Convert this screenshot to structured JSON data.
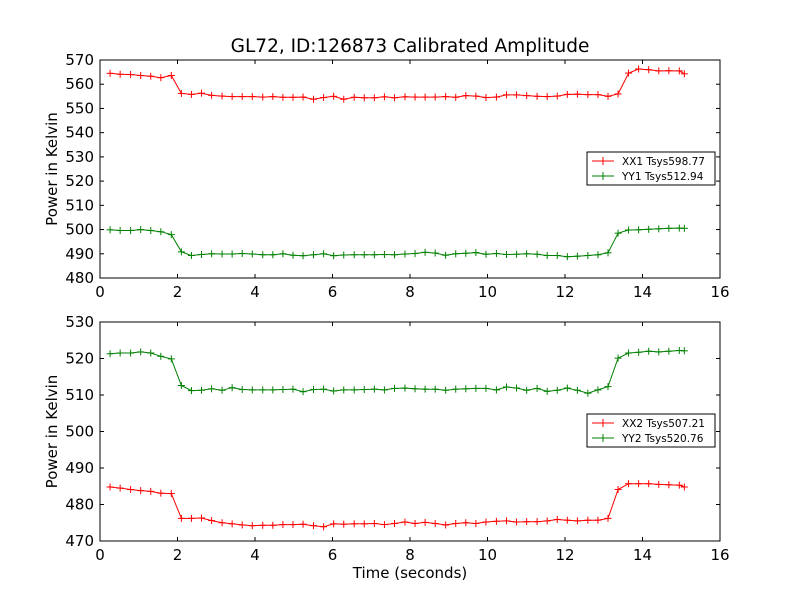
{
  "figure": {
    "title": "GL72, ID:126873 Calibrated Amplitude"
  },
  "chart_data": [
    {
      "type": "line",
      "title": "GL72, ID:126873 Calibrated Amplitude",
      "xlabel": "",
      "ylabel": "Power in Kelvin",
      "xlim": [
        0,
        16
      ],
      "ylim": [
        480,
        570
      ],
      "xticks": [
        0,
        2,
        4,
        6,
        8,
        10,
        12,
        14,
        16
      ],
      "yticks": [
        480,
        490,
        500,
        510,
        520,
        530,
        540,
        550,
        560,
        570
      ],
      "grid": false,
      "legend": "center-right",
      "marker": "+",
      "series": [
        {
          "name": "XX1 Tsys598.77",
          "color": "#ff0000",
          "x": [
            0.26,
            0.52,
            0.79,
            1.05,
            1.31,
            1.57,
            1.84,
            2.1,
            2.36,
            2.62,
            2.88,
            3.15,
            3.41,
            3.67,
            3.93,
            4.2,
            4.46,
            4.72,
            4.98,
            5.24,
            5.51,
            5.77,
            6.03,
            6.29,
            6.56,
            6.82,
            7.08,
            7.34,
            7.6,
            7.87,
            8.13,
            8.39,
            8.65,
            8.92,
            9.18,
            9.44,
            9.7,
            9.96,
            10.23,
            10.49,
            10.75,
            11.01,
            11.28,
            11.54,
            11.8,
            12.06,
            12.32,
            12.59,
            12.85,
            13.11,
            13.37,
            13.64,
            13.9,
            14.16,
            14.42,
            14.68,
            14.95,
            15.08
          ],
          "y": [
            564.5,
            564.1,
            564.0,
            563.6,
            563.3,
            562.7,
            563.6,
            556.2,
            555.8,
            556.3,
            555.4,
            555.1,
            554.9,
            554.9,
            554.9,
            554.7,
            554.9,
            554.6,
            554.6,
            554.7,
            553.8,
            554.5,
            555.0,
            553.8,
            554.6,
            554.4,
            554.4,
            554.8,
            554.4,
            554.8,
            554.7,
            554.7,
            554.7,
            554.9,
            554.6,
            555.3,
            555.1,
            554.5,
            554.7,
            555.6,
            555.6,
            555.3,
            555.0,
            554.9,
            555.1,
            555.8,
            555.9,
            555.7,
            555.7,
            555.0,
            556.0,
            564.6,
            566.3,
            566.0,
            565.5,
            565.6,
            565.5,
            564.3
          ]
        },
        {
          "name": "YY1 Tsys512.94",
          "color": "#008000",
          "x": [
            0.26,
            0.52,
            0.79,
            1.05,
            1.31,
            1.57,
            1.84,
            2.1,
            2.36,
            2.62,
            2.88,
            3.15,
            3.41,
            3.67,
            3.93,
            4.2,
            4.46,
            4.72,
            4.98,
            5.24,
            5.51,
            5.77,
            6.03,
            6.29,
            6.56,
            6.82,
            7.08,
            7.34,
            7.6,
            7.87,
            8.13,
            8.39,
            8.65,
            8.92,
            9.18,
            9.44,
            9.7,
            9.96,
            10.23,
            10.49,
            10.75,
            11.01,
            11.28,
            11.54,
            11.8,
            12.06,
            12.32,
            12.59,
            12.85,
            13.11,
            13.37,
            13.64,
            13.9,
            14.16,
            14.42,
            14.68,
            14.95,
            15.08
          ],
          "y": [
            499.9,
            499.6,
            499.6,
            500.0,
            499.6,
            499.1,
            497.9,
            490.8,
            489.3,
            489.7,
            490.0,
            489.9,
            489.9,
            490.1,
            489.9,
            489.6,
            489.6,
            490.0,
            489.4,
            489.2,
            489.6,
            490.0,
            489.2,
            489.5,
            489.6,
            489.6,
            489.6,
            489.7,
            489.6,
            489.9,
            490.1,
            490.6,
            490.3,
            489.4,
            490.0,
            490.2,
            490.5,
            489.8,
            490.1,
            489.7,
            489.8,
            490.0,
            489.8,
            489.3,
            489.3,
            488.8,
            489.0,
            489.3,
            489.6,
            490.4,
            498.5,
            499.8,
            499.9,
            500.1,
            500.3,
            500.5,
            500.6,
            500.5
          ]
        }
      ]
    },
    {
      "type": "line",
      "title": "",
      "xlabel": "Time (seconds)",
      "ylabel": "Power in Kelvin",
      "xlim": [
        0,
        16
      ],
      "ylim": [
        470,
        530
      ],
      "xticks": [
        0,
        2,
        4,
        6,
        8,
        10,
        12,
        14,
        16
      ],
      "yticks": [
        470,
        480,
        490,
        500,
        510,
        520,
        530
      ],
      "grid": false,
      "legend": "center-right",
      "marker": "+",
      "series": [
        {
          "name": "XX2 Tsys507.21",
          "color": "#ff0000",
          "x": [
            0.26,
            0.52,
            0.79,
            1.05,
            1.31,
            1.57,
            1.84,
            2.1,
            2.36,
            2.62,
            2.88,
            3.15,
            3.41,
            3.67,
            3.93,
            4.2,
            4.46,
            4.72,
            4.98,
            5.24,
            5.51,
            5.77,
            6.03,
            6.29,
            6.56,
            6.82,
            7.08,
            7.34,
            7.6,
            7.87,
            8.13,
            8.39,
            8.65,
            8.92,
            9.18,
            9.44,
            9.7,
            9.96,
            10.23,
            10.49,
            10.75,
            11.01,
            11.28,
            11.54,
            11.8,
            12.06,
            12.32,
            12.59,
            12.85,
            13.11,
            13.37,
            13.64,
            13.9,
            14.16,
            14.42,
            14.68,
            14.95,
            15.08
          ],
          "y": [
            484.8,
            484.5,
            484.1,
            483.8,
            483.6,
            483.1,
            483.0,
            476.2,
            476.2,
            476.3,
            475.6,
            475.0,
            474.7,
            474.4,
            474.2,
            474.3,
            474.3,
            474.5,
            474.5,
            474.6,
            474.2,
            473.9,
            474.7,
            474.6,
            474.7,
            474.7,
            474.8,
            474.5,
            474.8,
            475.2,
            474.8,
            475.1,
            474.8,
            474.4,
            474.8,
            475.0,
            474.8,
            475.2,
            475.4,
            475.5,
            475.2,
            475.3,
            475.3,
            475.5,
            475.9,
            475.7,
            475.5,
            475.7,
            475.7,
            476.2,
            484.1,
            485.7,
            485.7,
            485.7,
            485.5,
            485.4,
            485.3,
            484.8
          ]
        },
        {
          "name": "YY2 Tsys520.76",
          "color": "#008000",
          "x": [
            0.26,
            0.52,
            0.79,
            1.05,
            1.31,
            1.57,
            1.84,
            2.1,
            2.36,
            2.62,
            2.88,
            3.15,
            3.41,
            3.67,
            3.93,
            4.2,
            4.46,
            4.72,
            4.98,
            5.24,
            5.51,
            5.77,
            6.03,
            6.29,
            6.56,
            6.82,
            7.08,
            7.34,
            7.6,
            7.87,
            8.13,
            8.39,
            8.65,
            8.92,
            9.18,
            9.44,
            9.7,
            9.96,
            10.23,
            10.49,
            10.75,
            11.01,
            11.28,
            11.54,
            11.8,
            12.06,
            12.32,
            12.59,
            12.85,
            13.11,
            13.37,
            13.64,
            13.9,
            14.16,
            14.42,
            14.68,
            14.95,
            15.08
          ],
          "y": [
            521.3,
            521.5,
            521.5,
            521.8,
            521.5,
            520.6,
            519.9,
            512.6,
            511.2,
            511.3,
            511.7,
            511.3,
            512.0,
            511.5,
            511.4,
            511.4,
            511.4,
            511.5,
            511.6,
            510.9,
            511.5,
            511.6,
            511.1,
            511.4,
            511.4,
            511.5,
            511.6,
            511.4,
            511.8,
            511.9,
            511.7,
            511.6,
            511.6,
            511.3,
            511.6,
            511.7,
            511.8,
            511.8,
            511.4,
            512.2,
            511.9,
            511.3,
            511.8,
            511.0,
            511.3,
            511.9,
            511.3,
            510.5,
            511.4,
            512.3,
            520.1,
            521.5,
            521.7,
            522.0,
            521.8,
            522.0,
            522.2,
            522.1
          ]
        }
      ]
    }
  ]
}
